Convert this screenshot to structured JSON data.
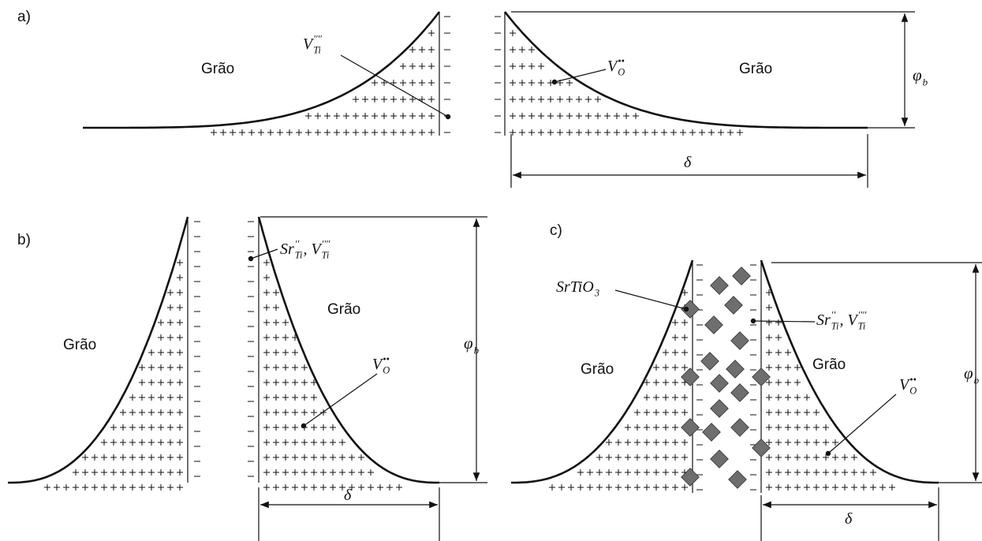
{
  "panels": [
    {
      "label": "a)",
      "grains": [
        "Grão",
        "Grão"
      ],
      "annotations": [
        [
          {
            "base": "V",
            "sup": "''''",
            "sub": "Ti"
          }
        ],
        [
          {
            "base": "V",
            "sup": "••",
            "sub": "O"
          }
        ]
      ],
      "phi": {
        "base": "φ",
        "sub": "b"
      },
      "delta": "δ"
    },
    {
      "label": "b)",
      "grains": [
        "Grão",
        "Grão"
      ],
      "annotations": [
        [
          {
            "base": "Sr",
            "sup": "''",
            "sub": "Ti"
          },
          {
            "base": ", V",
            "sup": "''''",
            "sub": "Ti"
          }
        ],
        [
          {
            "base": "V",
            "sup": "••",
            "sub": "O"
          }
        ]
      ],
      "phi": {
        "base": "φ",
        "sub": "b"
      },
      "delta": "δ"
    },
    {
      "label": "c)",
      "grains": [
        "Grão",
        "Grão"
      ],
      "annotations": [
        [
          {
            "base": "SrTiO",
            "sub": "3"
          }
        ],
        [
          {
            "base": "Sr",
            "sup": "''",
            "sub": "Ti"
          },
          {
            "base": ", V",
            "sup": "''''",
            "sub": "Ti"
          }
        ],
        [
          {
            "base": "V",
            "sup": "••",
            "sub": "O"
          }
        ]
      ],
      "phi": {
        "base": "φ",
        "sub": "b"
      },
      "delta": "δ"
    }
  ]
}
